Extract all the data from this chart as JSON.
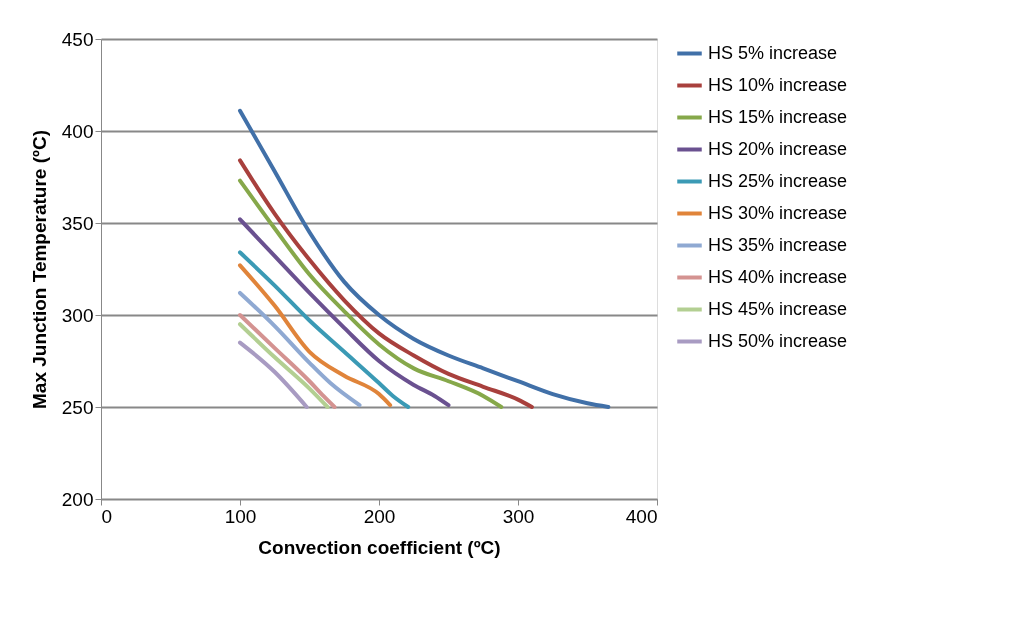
{
  "chart_data": {
    "type": "line",
    "xlabel": "Convection coefficient (ºC)",
    "ylabel": "Max Junction Temperature (ºC)",
    "xlim": [
      0,
      400
    ],
    "xticks": [
      0,
      100,
      200,
      300,
      400
    ],
    "ylim": [
      200,
      450
    ],
    "yticks": [
      200,
      250,
      300,
      350,
      400,
      450
    ],
    "grid": "y",
    "legend": "right",
    "marker": "none",
    "line_style": "solid",
    "series": [
      {
        "name": "HS 5% increase",
        "color": "#4170a8",
        "x": [
          100,
          125,
          150,
          175,
          200,
          225,
          250,
          275,
          300,
          325,
          350,
          365
        ],
        "values": [
          411,
          378,
          345,
          318,
          300,
          287,
          278,
          271,
          264,
          257,
          252,
          250
        ]
      },
      {
        "name": "HS 10% increase",
        "color": "#a8403d",
        "x": [
          100,
          125,
          150,
          175,
          200,
          225,
          250,
          275,
          300,
          310
        ],
        "values": [
          384,
          355,
          330,
          308,
          290,
          278,
          268,
          261,
          254,
          250
        ]
      },
      {
        "name": "HS 15% increase",
        "color": "#86a84a",
        "x": [
          100,
          125,
          150,
          175,
          200,
          225,
          250,
          275,
          288
        ],
        "values": [
          373,
          347,
          322,
          302,
          284,
          271,
          264,
          256,
          250
        ]
      },
      {
        "name": "HS 20% increase",
        "color": "#6a5190",
        "x": [
          100,
          125,
          150,
          175,
          200,
          225,
          240,
          250
        ],
        "values": [
          352,
          332,
          312,
          293,
          275,
          262,
          256,
          251
        ]
      },
      {
        "name": "HS 25% increase",
        "color": "#3b9ab5",
        "x": [
          100,
          125,
          150,
          175,
          200,
          210,
          221
        ],
        "values": [
          334,
          316,
          297,
          280,
          263,
          256,
          250
        ]
      },
      {
        "name": "HS 30% increase",
        "color": "#e0843a",
        "x": [
          100,
          125,
          150,
          175,
          200,
          208
        ],
        "values": [
          327,
          305,
          280,
          267,
          257,
          251
        ]
      },
      {
        "name": "HS 35% increase",
        "color": "#8fa9d2",
        "x": [
          100,
          125,
          150,
          165,
          186
        ],
        "values": [
          312,
          294,
          274,
          263,
          251
        ]
      },
      {
        "name": "HS 40% increase",
        "color": "#d49391",
        "x": [
          100,
          125,
          150,
          160,
          168
        ],
        "values": [
          300,
          282,
          264,
          256,
          250
        ]
      },
      {
        "name": "HS 45% increase",
        "color": "#b3cf92",
        "x": [
          100,
          125,
          150,
          163
        ],
        "values": [
          295,
          277,
          260,
          250
        ]
      },
      {
        "name": "HS 50% increase",
        "color": "#a89bc2",
        "x": [
          100,
          125,
          148
        ],
        "values": [
          285,
          269,
          250
        ]
      }
    ]
  }
}
